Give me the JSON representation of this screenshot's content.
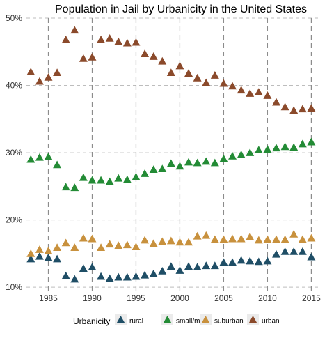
{
  "chart_data": {
    "type": "scatter",
    "title": "Population in Jail by Urbanicity in the United States",
    "xlabel": "",
    "ylabel": "",
    "xlim": [
      1982.5,
      2016
    ],
    "ylim": [
      9.5,
      50
    ],
    "x_ticks": [
      1985,
      1990,
      1995,
      2000,
      2005,
      2010,
      2015
    ],
    "y_ticks": [
      10,
      20,
      30,
      40,
      50
    ],
    "y_tick_labels": [
      "10%",
      "20%",
      "30%",
      "40%",
      "50%"
    ],
    "grid": true,
    "marker": "triangle",
    "legend": {
      "title": "Urbanicity",
      "position": "bottom"
    },
    "x": [
      1983,
      1984,
      1985,
      1986,
      1987,
      1988,
      1989,
      1990,
      1991,
      1992,
      1993,
      1994,
      1995,
      1996,
      1997,
      1998,
      1999,
      2000,
      2001,
      2002,
      2003,
      2004,
      2005,
      2006,
      2007,
      2008,
      2009,
      2010,
      2011,
      2012,
      2013,
      2014,
      2015
    ],
    "series": [
      {
        "name": "rural",
        "color": "#1f4e66",
        "values": [
          14.2,
          14.6,
          14.4,
          14.2,
          11.7,
          11.2,
          12.8,
          13.0,
          11.6,
          11.3,
          11.5,
          11.5,
          11.6,
          11.8,
          12.0,
          12.4,
          13.1,
          12.5,
          13.1,
          13.0,
          13.2,
          13.2,
          13.7,
          13.7,
          14.0,
          13.9,
          13.8,
          13.9,
          14.9,
          15.3,
          15.3,
          15.3,
          14.5
        ]
      },
      {
        "name": "small/mid",
        "color": "#238b35",
        "values": [
          29.0,
          29.3,
          29.4,
          28.2,
          24.9,
          24.8,
          26.3,
          25.9,
          25.9,
          25.7,
          26.2,
          26.0,
          26.4,
          26.9,
          27.5,
          27.6,
          28.4,
          28.0,
          28.6,
          28.5,
          28.7,
          28.5,
          29.1,
          29.5,
          29.7,
          30.0,
          30.4,
          30.5,
          30.7,
          30.9,
          30.8,
          31.3,
          31.6
        ]
      },
      {
        "name": "suburban",
        "color": "#c8913d",
        "values": [
          15.0,
          15.6,
          15.4,
          15.9,
          16.6,
          15.9,
          17.3,
          17.2,
          15.9,
          16.4,
          16.2,
          16.3,
          16.0,
          17.0,
          16.5,
          16.8,
          16.9,
          16.7,
          16.7,
          17.6,
          17.7,
          17.1,
          17.1,
          17.2,
          17.2,
          17.5,
          17.0,
          17.1,
          17.1,
          17.1,
          17.9,
          17.1,
          17.3
        ]
      },
      {
        "name": "urban",
        "color": "#8b4a2b",
        "values": [
          42.0,
          40.6,
          41.2,
          41.9,
          46.8,
          48.2,
          44.0,
          44.2,
          46.8,
          47.0,
          46.5,
          46.3,
          46.4,
          44.7,
          44.3,
          43.6,
          41.9,
          42.9,
          41.8,
          41.1,
          40.4,
          41.5,
          40.3,
          39.9,
          39.3,
          38.8,
          39.0,
          38.5,
          37.5,
          36.8,
          36.3,
          36.5,
          36.6
        ]
      }
    ]
  }
}
